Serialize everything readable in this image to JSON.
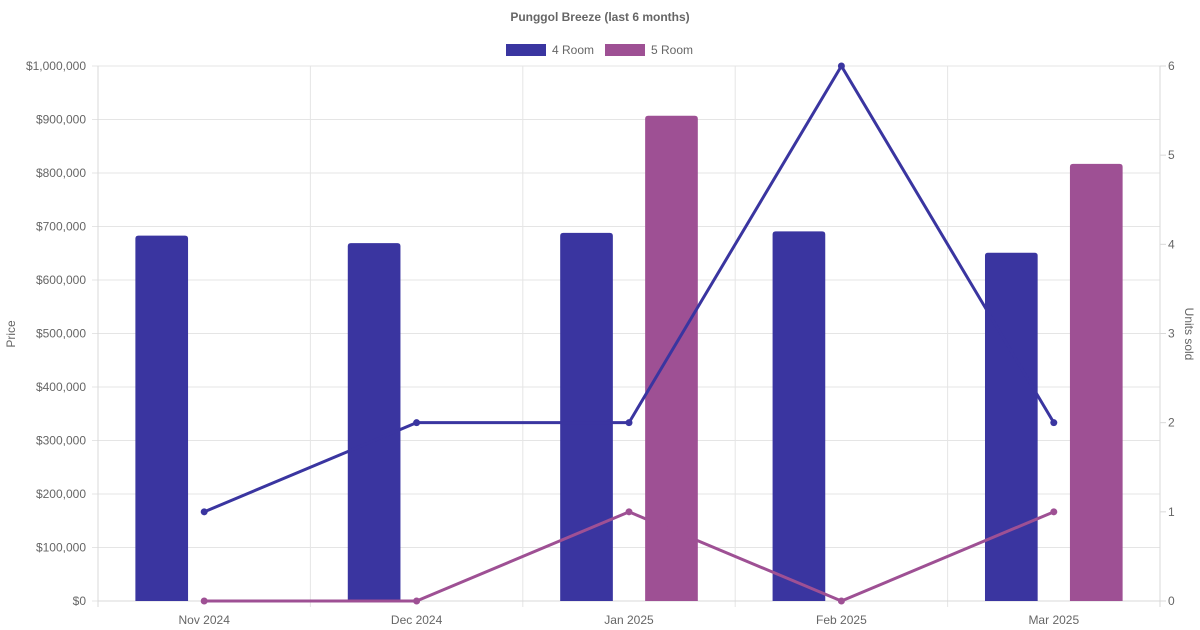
{
  "chart_data": {
    "type": "bar",
    "title": "Punggol Breeze (last 6 months)",
    "categories": [
      "Nov 2024",
      "Dec 2024",
      "Jan 2025",
      "Feb 2025",
      "Mar 2025"
    ],
    "series": [
      {
        "name": "4 Room",
        "type": "bar",
        "axis": "left",
        "color": "#3a35a0",
        "values": [
          683000,
          669000,
          688000,
          691000,
          651000
        ]
      },
      {
        "name": "5 Room",
        "type": "bar",
        "axis": "left",
        "color": "#9e5094",
        "values": [
          null,
          null,
          907000,
          null,
          817000
        ]
      },
      {
        "type": "line",
        "axis": "right",
        "color": "#3a35a0",
        "values": [
          1,
          2,
          2,
          6,
          2
        ]
      },
      {
        "type": "line",
        "axis": "right",
        "color": "#9e5094",
        "values": [
          0,
          0,
          1,
          0,
          1
        ]
      }
    ],
    "ylabel": "Price",
    "y2label": "Units sold",
    "ylim": [
      0,
      1000000
    ],
    "y2lim": [
      0,
      6
    ],
    "y_ticks": [
      "$0",
      "$100,000",
      "$200,000",
      "$300,000",
      "$400,000",
      "$500,000",
      "$600,000",
      "$700,000",
      "$800,000",
      "$900,000",
      "$1,000,000"
    ],
    "y2_ticks": [
      "0",
      "1",
      "2",
      "3",
      "4",
      "5",
      "6"
    ],
    "grid": true,
    "legend": {
      "position": "top-center",
      "entries": [
        "4 Room",
        "5 Room"
      ]
    }
  }
}
